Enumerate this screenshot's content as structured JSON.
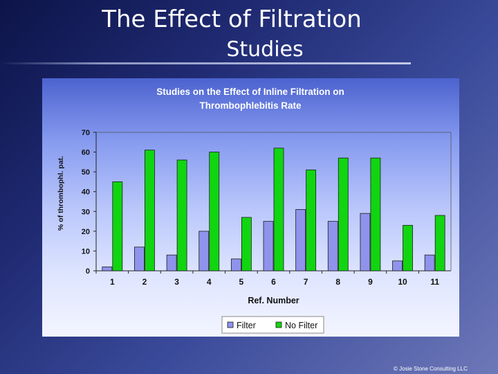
{
  "slide": {
    "title_line1": "The Effect of Filtration",
    "title_line2": "Studies",
    "footer": "© Josie Stone Consulting LLC"
  },
  "chart_data": {
    "type": "bar",
    "title": [
      "Studies on the Effect of Inline Filtration on",
      "Thrombophlebitis Rate"
    ],
    "xlabel": "Ref. Number",
    "ylabel": "% of thrombophl. pat.",
    "ylim": [
      0,
      70
    ],
    "yticks": [
      0,
      10,
      20,
      30,
      40,
      50,
      60,
      70
    ],
    "categories": [
      "1",
      "2",
      "3",
      "4",
      "5",
      "6",
      "7",
      "8",
      "9",
      "10",
      "11"
    ],
    "series": [
      {
        "name": "Filter",
        "color": "#8f93ec",
        "values": [
          2,
          12,
          8,
          20,
          6,
          25,
          31,
          25,
          29,
          5,
          8
        ]
      },
      {
        "name": "No Filter",
        "color": "#11d511",
        "values": [
          45,
          61,
          56,
          60,
          27,
          62,
          51,
          57,
          57,
          23,
          28
        ]
      }
    ],
    "legend_position": "bottom",
    "grid": false
  }
}
